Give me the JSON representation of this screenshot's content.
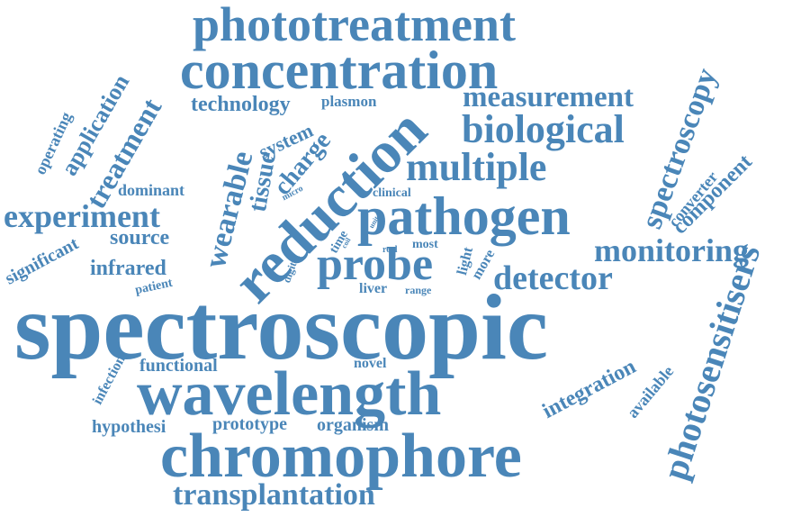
{
  "colors": {
    "word": "#4a86b8",
    "background": "#ffffff"
  },
  "words": [
    {
      "text": "spectroscopic"
    },
    {
      "text": "wavelength"
    },
    {
      "text": "chromophore"
    },
    {
      "text": "concentration"
    },
    {
      "text": "phototreatment"
    },
    {
      "text": "pathogen"
    },
    {
      "text": "reduction"
    },
    {
      "text": "probe"
    },
    {
      "text": "transplantation"
    },
    {
      "text": "photosensitisers"
    },
    {
      "text": "multiple"
    },
    {
      "text": "biological"
    },
    {
      "text": "monitoring"
    },
    {
      "text": "detector"
    },
    {
      "text": "experiment"
    },
    {
      "text": "measurement"
    },
    {
      "text": "spectroscopy"
    },
    {
      "text": "wearable"
    },
    {
      "text": "treatment"
    },
    {
      "text": "technology"
    },
    {
      "text": "application"
    },
    {
      "text": "tissue"
    },
    {
      "text": "charge"
    },
    {
      "text": "system"
    },
    {
      "text": "integration"
    },
    {
      "text": "component"
    },
    {
      "text": "converter"
    },
    {
      "text": "available"
    },
    {
      "text": "infrared"
    },
    {
      "text": "source"
    },
    {
      "text": "dominant"
    },
    {
      "text": "significant"
    },
    {
      "text": "operating"
    },
    {
      "text": "functional"
    },
    {
      "text": "hypothesi"
    },
    {
      "text": "prototype"
    },
    {
      "text": "organism"
    },
    {
      "text": "infection"
    },
    {
      "text": "patient"
    },
    {
      "text": "novel"
    },
    {
      "text": "liver"
    },
    {
      "text": "range"
    },
    {
      "text": "plasmon"
    },
    {
      "text": "clinical"
    },
    {
      "text": "light"
    },
    {
      "text": "more"
    },
    {
      "text": "most"
    },
    {
      "text": "real"
    },
    {
      "text": "digital"
    },
    {
      "text": "time"
    },
    {
      "text": "coil"
    },
    {
      "text": "unit"
    },
    {
      "text": "micro"
    }
  ]
}
